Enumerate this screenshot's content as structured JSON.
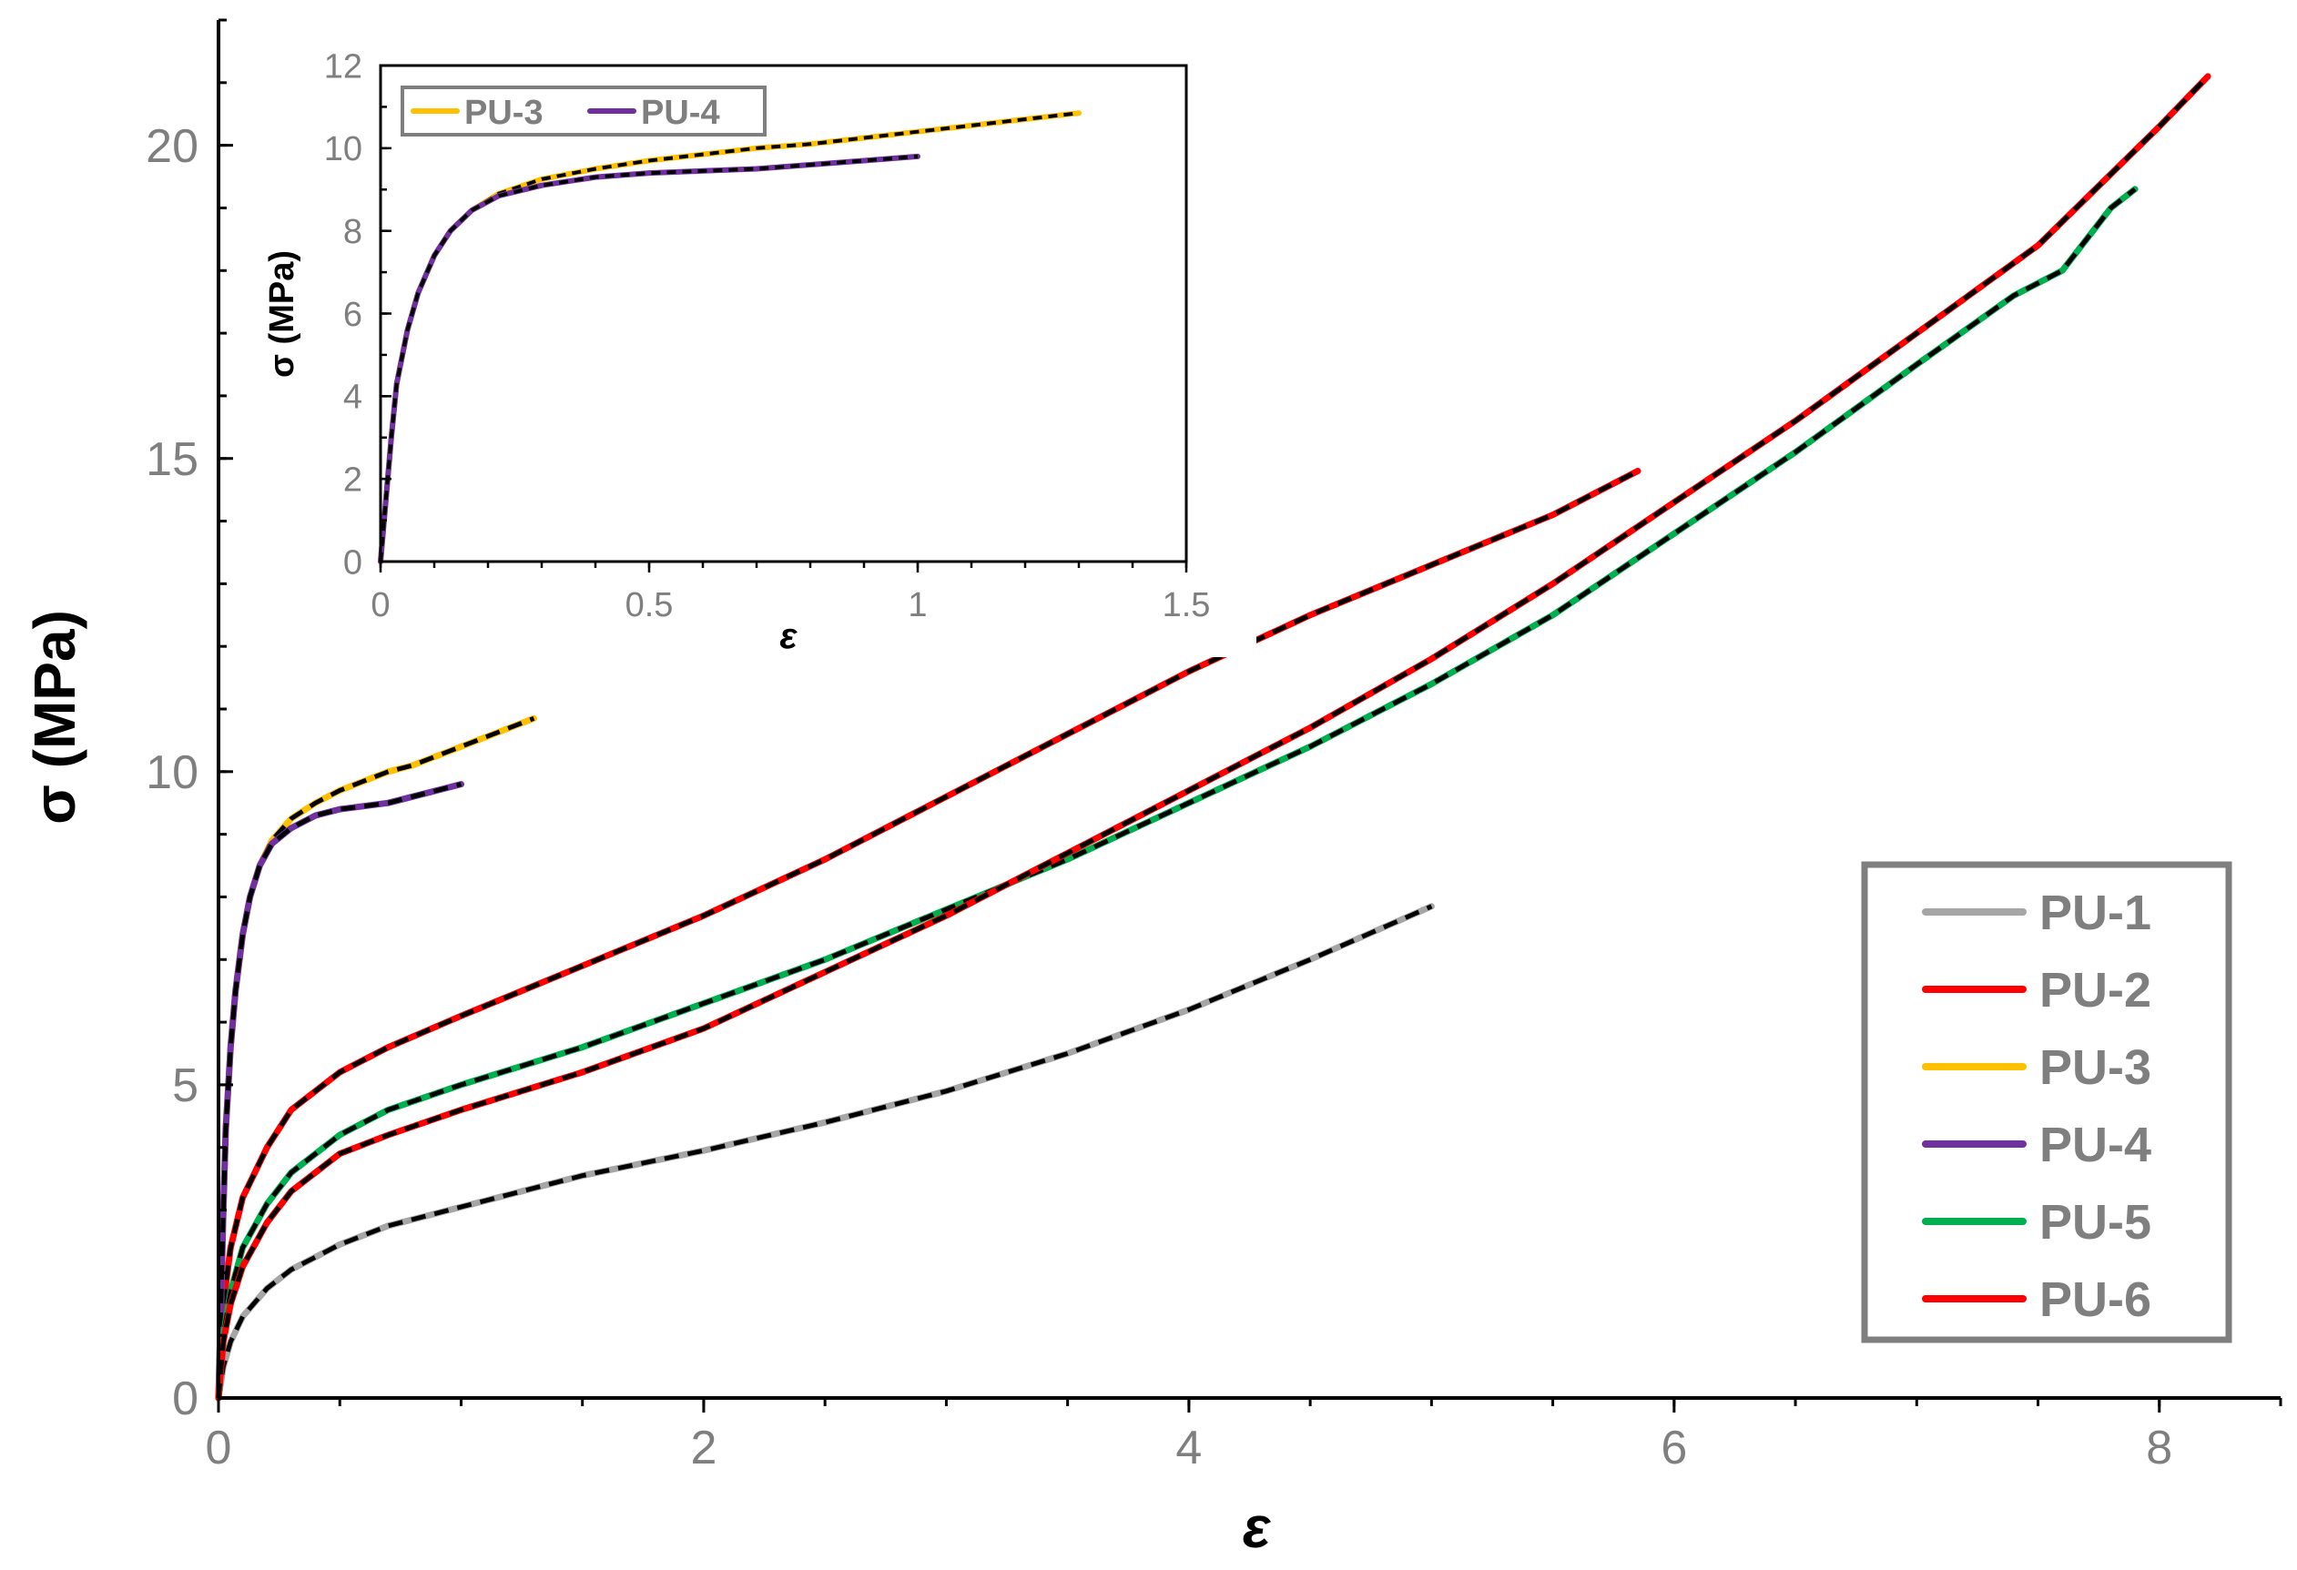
{
  "chart_data": [
    {
      "type": "line",
      "xlabel": "ε",
      "ylabel": "σ (MPa)",
      "xlim": [
        0,
        8.5
      ],
      "ylim": [
        0,
        22
      ],
      "xticks": [
        0,
        2,
        4,
        6,
        8
      ],
      "yticks": [
        0,
        5,
        10,
        15,
        20
      ],
      "grid": false,
      "legend_position": "bottom-right",
      "series": [
        {
          "name": "PU-1",
          "color": "#a6a6a6",
          "x": [
            0,
            0.02,
            0.05,
            0.1,
            0.2,
            0.3,
            0.5,
            0.7,
            1.0,
            1.5,
            2.0,
            2.5,
            3.0,
            3.5,
            4.0,
            4.5,
            5.0
          ],
          "y": [
            0,
            0.5,
            0.9,
            1.3,
            1.75,
            2.05,
            2.45,
            2.75,
            3.05,
            3.55,
            3.95,
            4.4,
            4.9,
            5.5,
            6.2,
            7.0,
            7.85
          ]
        },
        {
          "name": "PU-2",
          "color": "#ff0000",
          "x": [
            0,
            0.02,
            0.05,
            0.1,
            0.2,
            0.3,
            0.5,
            0.7,
            1.0,
            1.5,
            2.0,
            2.5,
            3.0,
            3.5,
            4.0,
            4.5,
            5.0,
            5.5,
            5.85
          ],
          "y": [
            0,
            1.5,
            2.4,
            3.2,
            4.0,
            4.6,
            5.2,
            5.6,
            6.1,
            6.9,
            7.7,
            8.6,
            9.6,
            10.6,
            11.6,
            12.5,
            13.3,
            14.1,
            14.8
          ]
        },
        {
          "name": "PU-3",
          "color": "#ffc000",
          "x": [
            0,
            0.01,
            0.02,
            0.03,
            0.05,
            0.07,
            0.1,
            0.13,
            0.17,
            0.22,
            0.3,
            0.4,
            0.5,
            0.6,
            0.7,
            0.8,
            0.9,
            1.0,
            1.1,
            1.2,
            1.3
          ],
          "y": [
            0,
            1.5,
            3.0,
            4.3,
            5.6,
            6.5,
            7.4,
            8.0,
            8.5,
            8.9,
            9.25,
            9.5,
            9.7,
            9.85,
            10.0,
            10.1,
            10.25,
            10.4,
            10.55,
            10.7,
            10.85
          ]
        },
        {
          "name": "PU-4",
          "color": "#7030a0",
          "x": [
            0,
            0.01,
            0.02,
            0.03,
            0.05,
            0.07,
            0.1,
            0.13,
            0.17,
            0.22,
            0.3,
            0.4,
            0.5,
            0.6,
            0.7,
            0.8,
            0.9,
            1.0
          ],
          "y": [
            0,
            1.5,
            3.0,
            4.3,
            5.6,
            6.5,
            7.4,
            8.0,
            8.5,
            8.85,
            9.1,
            9.3,
            9.4,
            9.45,
            9.5,
            9.6,
            9.7,
            9.8
          ]
        },
        {
          "name": "PU-5",
          "color": "#00b050",
          "x": [
            0,
            0.02,
            0.05,
            0.1,
            0.2,
            0.3,
            0.5,
            0.7,
            1.0,
            1.5,
            2.0,
            2.5,
            3.0,
            3.5,
            4.0,
            4.5,
            5.0,
            5.5,
            6.0,
            6.5,
            7.0,
            7.4,
            7.6,
            7.8,
            7.9
          ],
          "y": [
            0,
            1.0,
            1.7,
            2.4,
            3.1,
            3.6,
            4.2,
            4.6,
            5.0,
            5.6,
            6.3,
            7.0,
            7.8,
            8.6,
            9.5,
            10.4,
            11.4,
            12.5,
            13.8,
            15.1,
            16.5,
            17.6,
            18.0,
            19.0,
            19.3
          ]
        },
        {
          "name": "PU-6",
          "color": "#ff0000",
          "x": [
            0,
            0.02,
            0.05,
            0.1,
            0.2,
            0.3,
            0.5,
            0.7,
            1.0,
            1.5,
            2.0,
            2.5,
            3.0,
            3.5,
            4.0,
            4.5,
            5.0,
            5.5,
            6.0,
            6.5,
            7.0,
            7.5,
            8.0,
            8.2
          ],
          "y": [
            0,
            0.9,
            1.5,
            2.1,
            2.8,
            3.3,
            3.9,
            4.2,
            4.6,
            5.2,
            5.9,
            6.8,
            7.7,
            8.7,
            9.7,
            10.7,
            11.8,
            13.0,
            14.3,
            15.6,
            17.0,
            18.4,
            20.3,
            21.1
          ]
        }
      ]
    },
    {
      "type": "line",
      "inset": true,
      "xlabel": "ε",
      "ylabel": "σ (MPa)",
      "xlim": [
        0,
        1.5
      ],
      "ylim": [
        0,
        12
      ],
      "xticks": [
        "0",
        "0.5",
        "1",
        "1.5"
      ],
      "yticks": [
        "0",
        "2",
        "4",
        "6",
        "8",
        "10",
        "12"
      ],
      "grid": false,
      "legend_position": "top-left",
      "series": [
        {
          "name": "PU-3",
          "color": "#ffc000",
          "x": [
            0,
            0.01,
            0.02,
            0.03,
            0.05,
            0.07,
            0.1,
            0.13,
            0.17,
            0.22,
            0.3,
            0.4,
            0.5,
            0.6,
            0.7,
            0.8,
            0.9,
            1.0,
            1.1,
            1.2,
            1.3
          ],
          "y": [
            0,
            1.5,
            3.0,
            4.3,
            5.6,
            6.5,
            7.4,
            8.0,
            8.5,
            8.9,
            9.25,
            9.5,
            9.7,
            9.85,
            10.0,
            10.1,
            10.25,
            10.4,
            10.55,
            10.7,
            10.85
          ]
        },
        {
          "name": "PU-4",
          "color": "#7030a0",
          "x": [
            0,
            0.01,
            0.02,
            0.03,
            0.05,
            0.07,
            0.1,
            0.13,
            0.17,
            0.22,
            0.3,
            0.4,
            0.5,
            0.6,
            0.7,
            0.8,
            0.9,
            1.0
          ],
          "y": [
            0,
            1.5,
            3.0,
            4.3,
            5.6,
            6.5,
            7.4,
            8.0,
            8.5,
            8.85,
            9.1,
            9.3,
            9.4,
            9.45,
            9.5,
            9.6,
            9.7,
            9.8
          ]
        }
      ]
    }
  ]
}
